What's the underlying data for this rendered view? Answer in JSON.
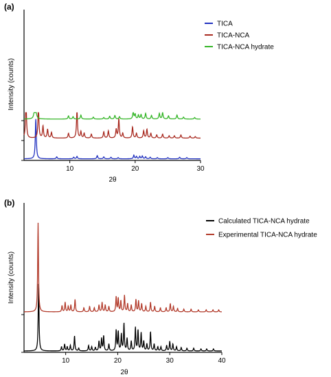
{
  "chart_data": [
    {
      "panel": "(a)",
      "type": "line",
      "xlabel": "2θ",
      "ylabel": "Intensity (counts)",
      "xlim": [
        3,
        30
      ],
      "x_ticks": [
        10,
        20,
        30
      ],
      "grid": false,
      "legend_position": "top-right",
      "series": [
        {
          "name": "TICA",
          "color": "#1f2fbf",
          "offset": 0,
          "baseline_intensity": 4,
          "peaks": [
            [
              4.8,
              100
            ],
            [
              8.0,
              5
            ],
            [
              10.6,
              4
            ],
            [
              11.1,
              6
            ],
            [
              14.2,
              8
            ],
            [
              15.2,
              5
            ],
            [
              16.3,
              4
            ],
            [
              17.4,
              3
            ],
            [
              19.8,
              9
            ],
            [
              20.2,
              6
            ],
            [
              20.7,
              6
            ],
            [
              21.1,
              7
            ],
            [
              21.6,
              5
            ],
            [
              22.3,
              4
            ],
            [
              23.4,
              3
            ],
            [
              25.0,
              3
            ],
            [
              26.8,
              4
            ],
            [
              27.9,
              3
            ]
          ]
        },
        {
          "name": "TICA-NCA",
          "color": "#a8291f",
          "offset": 50,
          "baseline_intensity": 6,
          "peaks": [
            [
              3.3,
              95
            ],
            [
              5.2,
              78
            ],
            [
              5.9,
              30
            ],
            [
              6.6,
              22
            ],
            [
              7.2,
              14
            ],
            [
              9.8,
              12
            ],
            [
              11.1,
              70
            ],
            [
              11.7,
              16
            ],
            [
              12.2,
              12
            ],
            [
              13.3,
              10
            ],
            [
              15.2,
              16
            ],
            [
              15.9,
              18
            ],
            [
              17.1,
              22
            ],
            [
              17.5,
              48
            ],
            [
              18.1,
              12
            ],
            [
              19.6,
              28
            ],
            [
              20.2,
              12
            ],
            [
              21.3,
              18
            ],
            [
              21.8,
              22
            ],
            [
              22.4,
              12
            ],
            [
              23.3,
              8
            ],
            [
              24.2,
              10
            ],
            [
              25.2,
              6
            ],
            [
              26.0,
              6
            ],
            [
              27.0,
              8
            ],
            [
              28.4,
              5
            ],
            [
              29.2,
              4
            ]
          ]
        },
        {
          "name": "TICA-NCA hydrate",
          "color": "#33b526",
          "offset": 100,
          "baseline_intensity": 4,
          "peaks": [
            [
              4.7,
              90
            ],
            [
              9.8,
              8
            ],
            [
              10.5,
              6
            ],
            [
              11.7,
              10
            ],
            [
              13.6,
              5
            ],
            [
              15.2,
              4
            ],
            [
              16.1,
              7
            ],
            [
              16.9,
              9
            ],
            [
              17.6,
              6
            ],
            [
              19.7,
              18
            ],
            [
              20.0,
              12
            ],
            [
              20.5,
              10
            ],
            [
              20.9,
              11
            ],
            [
              21.6,
              14
            ],
            [
              22.5,
              9
            ],
            [
              23.7,
              14
            ],
            [
              24.2,
              16
            ],
            [
              25.1,
              8
            ],
            [
              26.4,
              10
            ],
            [
              27.4,
              5
            ],
            [
              29.1,
              4
            ]
          ]
        }
      ]
    },
    {
      "panel": "(b)",
      "type": "line",
      "xlabel": "2θ",
      "ylabel": "Intensity (counts)",
      "xlim": [
        2,
        40
      ],
      "x_ticks": [
        10,
        20,
        30,
        40
      ],
      "grid": false,
      "legend_position": "top-right",
      "series": [
        {
          "name": "Calculated TICA-NCA hydrate",
          "color": "#000000",
          "offset": 0,
          "baseline_intensity": 2,
          "peaks": [
            [
              4.8,
              100
            ],
            [
              9.2,
              6
            ],
            [
              9.8,
              10
            ],
            [
              10.3,
              6
            ],
            [
              10.9,
              8
            ],
            [
              11.7,
              22
            ],
            [
              12.5,
              4
            ],
            [
              14.4,
              8
            ],
            [
              15.0,
              6
            ],
            [
              15.7,
              5
            ],
            [
              16.4,
              14
            ],
            [
              16.9,
              18
            ],
            [
              17.3,
              22
            ],
            [
              18.3,
              10
            ],
            [
              19.7,
              30
            ],
            [
              20.1,
              28
            ],
            [
              20.7,
              24
            ],
            [
              21.2,
              40
            ],
            [
              21.8,
              18
            ],
            [
              22.6,
              14
            ],
            [
              23.4,
              34
            ],
            [
              23.9,
              30
            ],
            [
              24.5,
              26
            ],
            [
              25.0,
              14
            ],
            [
              25.6,
              10
            ],
            [
              26.3,
              28
            ],
            [
              27.0,
              10
            ],
            [
              27.7,
              6
            ],
            [
              28.3,
              6
            ],
            [
              29.4,
              8
            ],
            [
              30.0,
              14
            ],
            [
              30.6,
              10
            ],
            [
              31.3,
              6
            ],
            [
              32.2,
              5
            ],
            [
              33.3,
              4
            ],
            [
              34.6,
              4
            ],
            [
              36.0,
              3
            ],
            [
              37.1,
              3
            ],
            [
              38.4,
              3
            ]
          ]
        },
        {
          "name": "Experimental TICA-NCA hydrate",
          "color": "#b23a2a",
          "offset": 55,
          "baseline_intensity": 4,
          "peaks": [
            [
              4.7,
              130
            ],
            [
              9.3,
              9
            ],
            [
              9.9,
              14
            ],
            [
              10.5,
              8
            ],
            [
              11.0,
              10
            ],
            [
              11.8,
              18
            ],
            [
              13.5,
              6
            ],
            [
              14.6,
              8
            ],
            [
              15.5,
              6
            ],
            [
              16.4,
              10
            ],
            [
              17.0,
              14
            ],
            [
              17.6,
              10
            ],
            [
              18.3,
              8
            ],
            [
              19.7,
              22
            ],
            [
              20.1,
              20
            ],
            [
              20.6,
              16
            ],
            [
              21.3,
              24
            ],
            [
              21.9,
              12
            ],
            [
              22.6,
              10
            ],
            [
              23.5,
              18
            ],
            [
              24.0,
              16
            ],
            [
              24.6,
              12
            ],
            [
              25.4,
              8
            ],
            [
              26.3,
              14
            ],
            [
              27.1,
              8
            ],
            [
              28.2,
              6
            ],
            [
              29.3,
              6
            ],
            [
              30.1,
              12
            ],
            [
              30.7,
              8
            ],
            [
              31.5,
              5
            ],
            [
              32.7,
              4
            ],
            [
              34.1,
              4
            ],
            [
              35.5,
              3
            ],
            [
              37.0,
              3
            ],
            [
              38.3,
              3
            ],
            [
              39.4,
              3
            ]
          ]
        }
      ]
    }
  ]
}
